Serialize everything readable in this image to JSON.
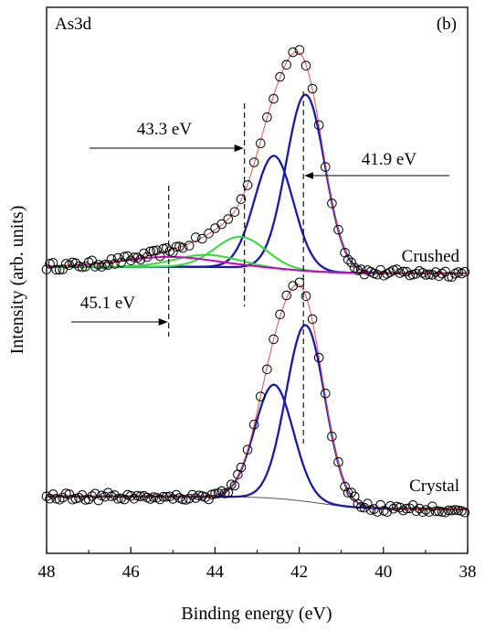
{
  "chart_data": {
    "type": "line",
    "panel_label": "As3d",
    "panel_tag": "(b)",
    "xlabel": "Binding energy (eV)",
    "ylabel": "Intensity (arb. units)",
    "x_reversed": true,
    "xlim": [
      48,
      38
    ],
    "ylim": [
      0,
      1
    ],
    "y_ticks_labeled": false,
    "x_ticks": [
      "48",
      "46",
      "44",
      "42",
      "40",
      "38"
    ],
    "x_tick_values": [
      48,
      46,
      44,
      42,
      40,
      38
    ],
    "colors": {
      "data_markers": "#000000",
      "envelope_fit": "#e05050",
      "as_component": "#1a1aaa",
      "green_component": "#33dd33",
      "magenta_component": "#cc00cc",
      "crystal_background": "#555555"
    },
    "spectra": [
      {
        "label": "Crushed",
        "baseline": 0.513,
        "background_step": 0.012,
        "background_center": 42.2,
        "components": [
          {
            "color": "blue",
            "center": 41.85,
            "height": 0.323,
            "sigma": 0.46
          },
          {
            "color": "blue",
            "center": 42.6,
            "height": 0.207,
            "sigma": 0.46
          },
          {
            "color": "green",
            "center": 43.4,
            "height": 0.056,
            "sigma": 0.6
          },
          {
            "color": "green",
            "center": 44.2,
            "height": 0.022,
            "sigma": 0.75
          },
          {
            "color": "magenta",
            "center": 45.1,
            "height": 0.018,
            "sigma": 1.1
          }
        ]
      },
      {
        "label": "Crystal",
        "baseline": 0.081,
        "background_step": 0.023,
        "background_center": 41.6,
        "components": [
          {
            "color": "blue",
            "center": 41.85,
            "height": 0.323,
            "sigma": 0.46
          },
          {
            "color": "blue",
            "center": 42.6,
            "height": 0.208,
            "sigma": 0.46
          }
        ]
      }
    ],
    "annotations": [
      {
        "label": "43.3 eV",
        "energy": 43.3,
        "arrow": "from-left"
      },
      {
        "label": "41.9 eV",
        "energy": 41.9,
        "arrow": "from-right"
      },
      {
        "label": "45.1 eV",
        "energy": 45.1,
        "arrow": "from-left"
      }
    ]
  }
}
